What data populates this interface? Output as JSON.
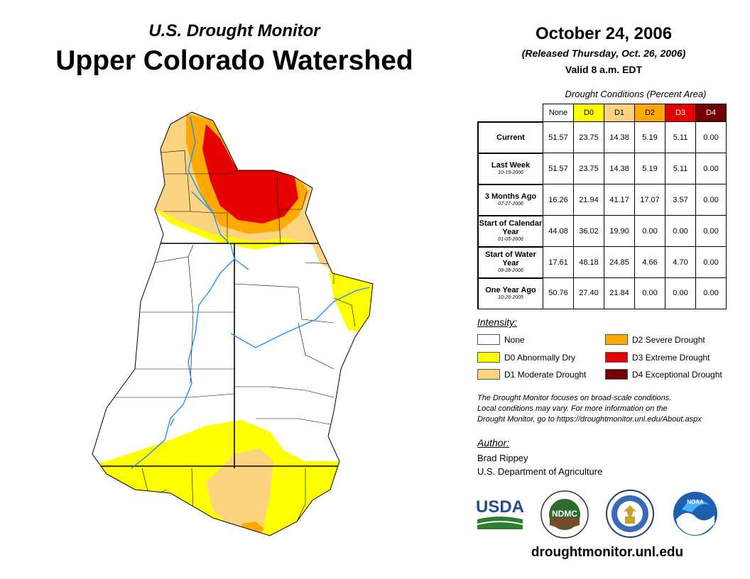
{
  "header": {
    "subtitle": "U.S. Drought Monitor",
    "title": "Upper Colorado Watershed",
    "date": "October 24, 2006",
    "released": "(Released Thursday, Oct. 26, 2006)",
    "valid": "Valid 8 a.m. EDT"
  },
  "table": {
    "caption": "Drought Conditions (Percent Area)",
    "columns": [
      "None",
      "D0",
      "D1",
      "D2",
      "D3",
      "D4"
    ],
    "column_colors": [
      "#ffffff",
      "#ffff00",
      "#fcd37f",
      "#ffaa00",
      "#e60000",
      "#730000"
    ],
    "rows": [
      {
        "label": "Current",
        "date": "",
        "values": [
          "51.57",
          "23.75",
          "14.38",
          "5.19",
          "5.11",
          "0.00"
        ]
      },
      {
        "label": "Last Week",
        "date": "10-19-2006",
        "values": [
          "51.57",
          "23.75",
          "14.38",
          "5.19",
          "5.11",
          "0.00"
        ]
      },
      {
        "label": "3 Months Ago",
        "date": "07-27-2006",
        "values": [
          "16.26",
          "21.94",
          "41.17",
          "17.07",
          "3.57",
          "0.00"
        ]
      },
      {
        "label": "Start of Calendar Year",
        "date": "01-05-2006",
        "values": [
          "44.08",
          "36.02",
          "19.90",
          "0.00",
          "0.00",
          "0.00"
        ]
      },
      {
        "label": "Start of Water Year",
        "date": "09-28-2006",
        "values": [
          "17.61",
          "48.18",
          "24.85",
          "4.66",
          "4.70",
          "0.00"
        ]
      },
      {
        "label": "One Year Ago",
        "date": "10-26-2005",
        "values": [
          "50.76",
          "27.40",
          "21.84",
          "0.00",
          "0.00",
          "0.00"
        ]
      }
    ]
  },
  "legend": {
    "heading": "Intensity:",
    "items": [
      {
        "label": "None",
        "color": "#ffffff"
      },
      {
        "label": "D0 Abnormally Dry",
        "color": "#ffff00"
      },
      {
        "label": "D1 Moderate Drought",
        "color": "#fcd37f"
      },
      {
        "label": "D2 Severe Drought",
        "color": "#ffaa00"
      },
      {
        "label": "D3 Extreme Drought",
        "color": "#e60000"
      },
      {
        "label": "D4 Exceptional Drought",
        "color": "#730000"
      }
    ]
  },
  "note": {
    "line1": "The Drought Monitor focuses on broad-scale conditions.",
    "line2": "Local conditions may vary. For more information on the",
    "line3": "Drought Monitor, go to https://droughtmonitor.unl.edu/About.aspx"
  },
  "author": {
    "heading": "Author:",
    "name": "Brad Rippey",
    "org": "U.S. Department of Agriculture"
  },
  "logos": {
    "usda": "USDA",
    "ndmc": "NDMC",
    "noaa": "NOAA"
  },
  "website": "droughtmonitor.unl.edu",
  "map": {
    "river_color": "#1e90ff",
    "boundary_color": "#000000"
  }
}
